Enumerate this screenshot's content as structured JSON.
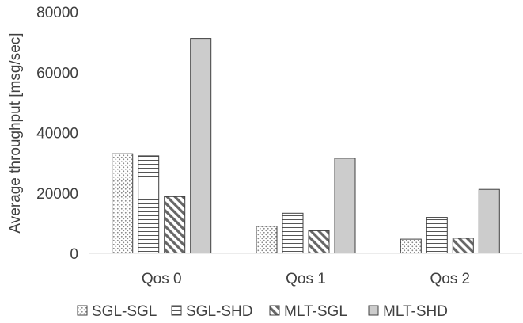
{
  "chart_data": {
    "type": "bar",
    "title": "",
    "xlabel": "",
    "ylabel": "Average throughput [msg/sec]",
    "ylim": [
      0,
      80000
    ],
    "yticks": [
      "0",
      "20000",
      "40000",
      "60000",
      "80000"
    ],
    "categories": [
      "Qos 0",
      "Qos 1",
      "Qos 2"
    ],
    "series": [
      {
        "name": "SGL-SGL",
        "values": [
          33000,
          9000,
          4700
        ],
        "pattern": "dots"
      },
      {
        "name": "SGL-SHD",
        "values": [
          32300,
          13300,
          11900
        ],
        "pattern": "hlines"
      },
      {
        "name": "MLT-SGL",
        "values": [
          18800,
          7500,
          5000
        ],
        "pattern": "diag"
      },
      {
        "name": "MLT-SHD",
        "values": [
          71200,
          31500,
          21200
        ],
        "pattern": "solid"
      }
    ],
    "grid": false,
    "legend_position": "bottom",
    "colors": {
      "axis": "#d9d9d9",
      "bar_edge": "#404040",
      "solid_fill": "#cccccc",
      "text": "#404040"
    }
  }
}
